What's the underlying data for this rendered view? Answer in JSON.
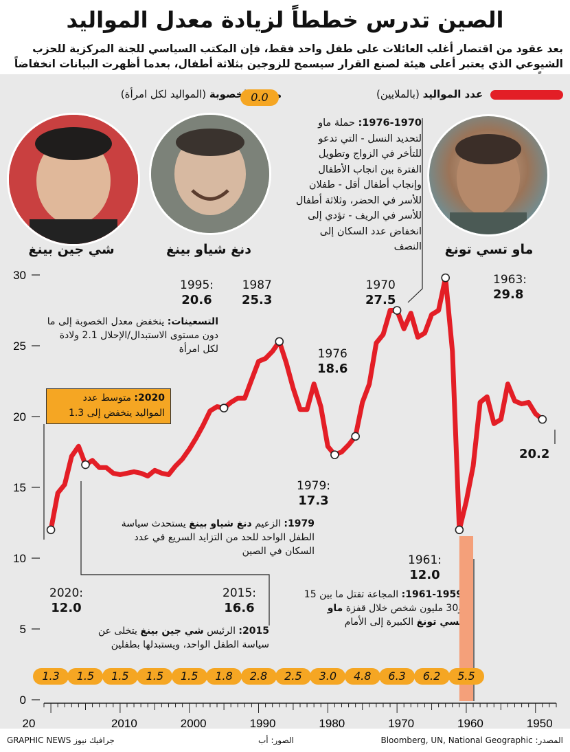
{
  "title": "الصين تدرس خططاً لزيادة معدل المواليد",
  "subtitle": "بعد عقود من اقتصار أغلب العائلات على طفل واحد فقط، فإن المكتب السياسي للجنة المركزية للحزب الشيوعي الذي يعتبر أعلى هيئة لصنع القرار سيسمح للزوجين بثلاثة أطفال، بعدما أظهرت البيانات انخفاضاً كبيراً في عدد المواليد",
  "legend": {
    "births_label": "عدد المواليد",
    "births_unit": "(بالملايين)",
    "fertility_label": "معدل الخصوبة",
    "fertility_unit": "(المواليد لكل امرأة)",
    "fertility_sample": "0.0"
  },
  "leaders": [
    {
      "name": "ماو تسي تونغ"
    },
    {
      "name": "دنغ شياو بينغ"
    },
    {
      "name": "شي جين بينغ"
    }
  ],
  "annotations": {
    "a1970_1976_year": "1976-1970:",
    "a1970_1976_text": "حملة ماو لتحديد النسل - التي تدعو للتأخر في الزواج وتطويل الفترة بين انجاب الأطفال وإنجاب أطفال أقل - طفلان للأسر في الحضر، وثلاثة أطفال للأسر في الريف - تؤدي إلى انخفاض عدد السكان إلى النصف",
    "nineties_head": "التسعينات:",
    "nineties_text": "ينخفض معدل الخصوبة إلى ما دون مستوى الاستبدال/الإحلال 2.1 ولادة لكل امرأة",
    "box2020_head": "2020:",
    "box2020_text": "متوسط عدد المواليد ينخفض إلى 1.3",
    "a1979_head": "1979:",
    "a1979_pre": "الزعيم",
    "a1979_name": "دنغ شياو بينغ",
    "a1979_text": "يستحدث سياسة الطفل الواحد للحد من التزايد السريع في عدد السكان في الصين",
    "a2015_head": "2015:",
    "a2015_pre": "الرئيس",
    "a2015_name": "شي جين بينغ",
    "a2015_text": "يتخلى عن سياسة الطفل الواحد، ويستبدلها بطفلين",
    "famine_head": "1961-1959:",
    "famine_text1": "المجاعة تقتل ما بين 15 و30 مليون شخص خلال قفزة",
    "famine_name": "ماو تسي تونغ",
    "famine_text2": "الكبيرة إلى الأمام"
  },
  "callouts": [
    {
      "year": "1963:",
      "value": "29.8"
    },
    {
      "year": "1970",
      "value": "27.5"
    },
    {
      "year": "1976",
      "value": "18.6"
    },
    {
      "year": "1979:",
      "value": "17.3"
    },
    {
      "year": "1961:",
      "value": "12.0"
    },
    {
      "year": "1987",
      "value": "25.3"
    },
    {
      "year": "1995:",
      "value": "20.6"
    },
    {
      "year": "2015:",
      "value": "16.6"
    },
    {
      "year": "2020:",
      "value": "12.0"
    },
    {
      "year": "",
      "value": "20.2"
    }
  ],
  "footer": {
    "source_label": "المصدر:",
    "source": "Bloomberg, UN, National Geographic",
    "photos": "الصور: أب",
    "brand": "GRAPHIC NEWS",
    "brand_ar": "جرافيك نيوز"
  },
  "colors": {
    "line": "#e31e26",
    "badge": "#f5a623",
    "famine": "#f4a07a",
    "panel": "#e9e9e9"
  },
  "chart_data": {
    "type": "line",
    "title": "الصين تدرس خططاً لزيادة معدل المواليد",
    "ylabel": "عدد المواليد (بالملايين)",
    "ylim": [
      0,
      30
    ],
    "yticks": [
      0,
      5,
      10,
      15,
      20,
      25,
      30
    ],
    "xlim": [
      2021,
      1947
    ],
    "x_ticks": [
      2010,
      2000,
      1990,
      1980,
      1970,
      1960,
      1950
    ],
    "x_tick_labels": [
      "20",
      "2010",
      "2000",
      "1990",
      "1980",
      "1970",
      "1960",
      "1950"
    ],
    "series": [
      {
        "name": "عدد المواليد",
        "x": [
          2020,
          2019,
          2018,
          2017,
          2016,
          2015,
          2014,
          2013,
          2012,
          2011,
          2010,
          2009,
          2008,
          2007,
          2006,
          2005,
          2004,
          2003,
          2002,
          2001,
          2000,
          1999,
          1998,
          1997,
          1996,
          1995,
          1994,
          1993,
          1992,
          1991,
          1990,
          1989,
          1988,
          1987,
          1986,
          1985,
          1984,
          1983,
          1982,
          1981,
          1980,
          1979,
          1978,
          1977,
          1976,
          1975,
          1974,
          1973,
          1972,
          1971,
          1970,
          1969,
          1968,
          1967,
          1966,
          1965,
          1964,
          1963,
          1962,
          1961,
          1960,
          1959,
          1958,
          1957,
          1956,
          1955,
          1954,
          1953,
          1952,
          1951,
          1950,
          1949
        ],
        "values": [
          12.0,
          14.6,
          15.2,
          17.2,
          17.9,
          16.6,
          16.9,
          16.4,
          16.4,
          16.0,
          15.9,
          16.0,
          16.1,
          16.0,
          15.8,
          16.2,
          16.0,
          15.9,
          16.5,
          17.0,
          17.7,
          18.5,
          19.4,
          20.4,
          20.7,
          20.6,
          21.0,
          21.3,
          21.3,
          22.6,
          23.9,
          24.1,
          24.6,
          25.3,
          23.8,
          22.0,
          20.5,
          20.5,
          22.3,
          20.7,
          17.9,
          17.3,
          17.5,
          18.0,
          18.6,
          21.0,
          22.3,
          25.2,
          25.8,
          27.5,
          27.5,
          26.2,
          27.3,
          25.6,
          25.9,
          27.2,
          27.5,
          29.8,
          24.6,
          12.0,
          14.0,
          16.5,
          21.0,
          21.4,
          19.5,
          19.8,
          22.3,
          21.1,
          20.9,
          21.0,
          20.2,
          19.8
        ]
      }
    ],
    "fertility_badges": [
      {
        "x": 2020,
        "value": "1.3"
      },
      {
        "x": 2015,
        "value": "1.5"
      },
      {
        "x": 2010,
        "value": "1.5"
      },
      {
        "x": 2005,
        "value": "1.5"
      },
      {
        "x": 2000,
        "value": "1.5"
      },
      {
        "x": 1995,
        "value": "1.8"
      },
      {
        "x": 1990,
        "value": "2.8"
      },
      {
        "x": 1985,
        "value": "2.5"
      },
      {
        "x": 1980,
        "value": "3.0"
      },
      {
        "x": 1975,
        "value": "4.8"
      },
      {
        "x": 1970,
        "value": "6.3"
      },
      {
        "x": 1965,
        "value": "6.2"
      },
      {
        "x": 1960,
        "value": "5.5"
      }
    ],
    "shaded_range": [
      1959,
      1961
    ]
  }
}
